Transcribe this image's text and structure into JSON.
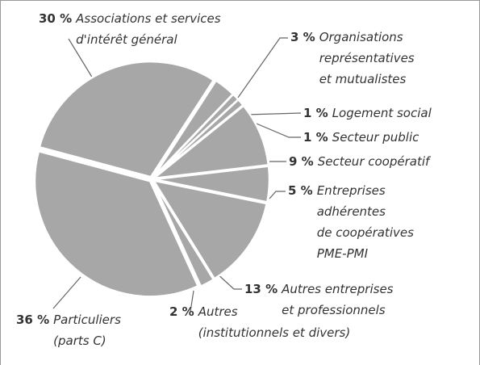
{
  "chart_data": {
    "type": "pie",
    "categories": [
      "Associations et services\nd'intérêt général",
      "Organisations\nreprésentatives\net mutualistes",
      "Logement social",
      "Secteur public",
      "Secteur coopératif",
      "Entreprises\nadhérentes\nde coopératives\nPME-PMI",
      "Autres entreprises\net professionnels",
      "Autres\n(institutionnels et divers)",
      "Particuliers\n(parts C)"
    ],
    "values": [
      30,
      3,
      1,
      1,
      9,
      5,
      13,
      2,
      36
    ],
    "value_labels": [
      "30 %",
      "3 %",
      "1 %",
      "1 %",
      "9 %",
      "5 %",
      "13 %",
      "2 %",
      "36 %"
    ],
    "color": "#a7a7a7"
  }
}
